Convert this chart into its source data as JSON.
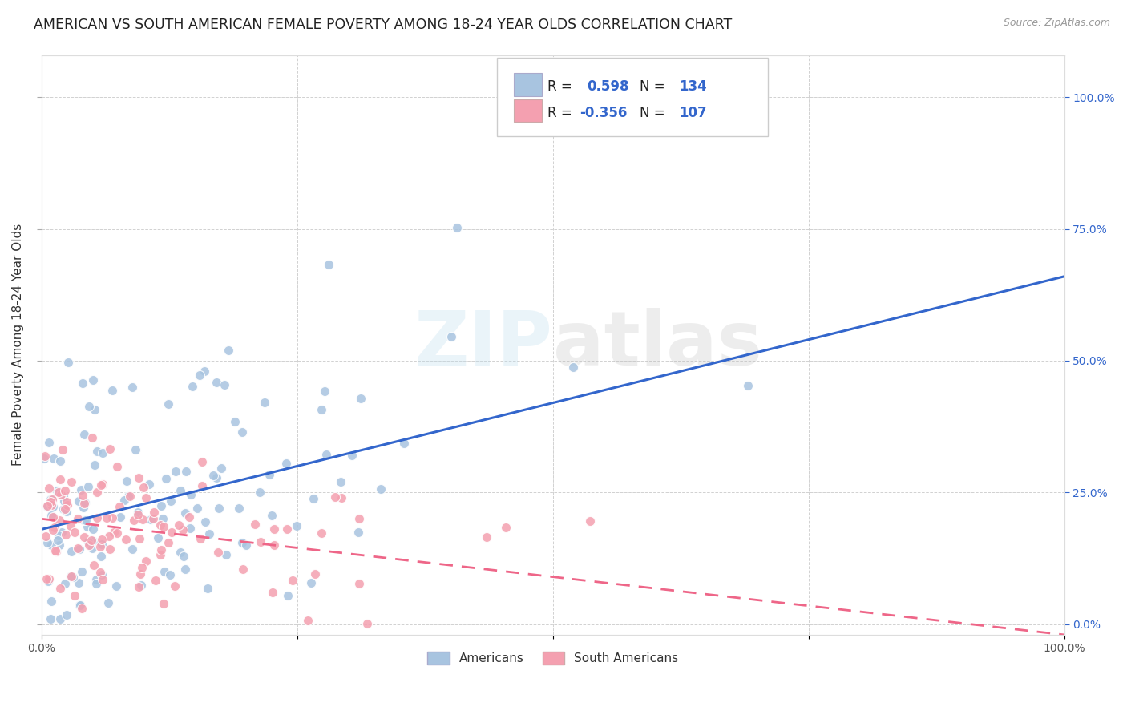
{
  "title": "AMERICAN VS SOUTH AMERICAN FEMALE POVERTY AMONG 18-24 YEAR OLDS CORRELATION CHART",
  "source": "Source: ZipAtlas.com",
  "ylabel": "Female Poverty Among 18-24 Year Olds",
  "r_american": 0.598,
  "n_american": 134,
  "r_south_american": -0.356,
  "n_south_american": 107,
  "blue_scatter": "#A8C4E0",
  "pink_scatter": "#F4A0B0",
  "line_blue": "#3366CC",
  "line_pink": "#EE6688",
  "legend_label_american": "Americans",
  "legend_label_south_american": "South Americans",
  "title_fontsize": 12.5,
  "axis_label_fontsize": 11,
  "tick_fontsize": 10,
  "watermark_text": "ZIPAtlas",
  "background_color": "#FFFFFF",
  "grid_color": "#CCCCCC",
  "blue_label_color": "#3366CC",
  "black_label_color": "#222222",
  "right_tick_color": "#3366CC"
}
